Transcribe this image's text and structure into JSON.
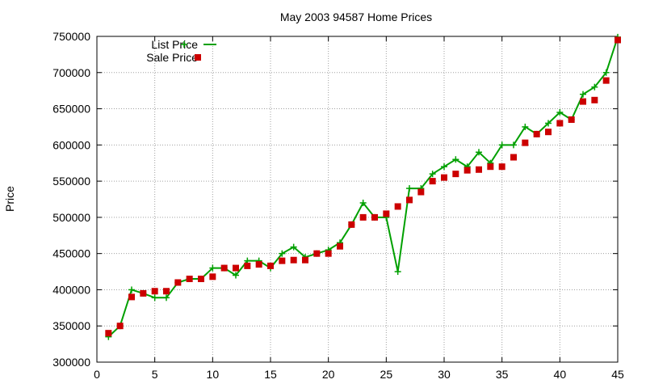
{
  "chart_data": {
    "type": "line",
    "title": "May 2003 94587 Home Prices",
    "xlabel": "",
    "ylabel": "Price",
    "xlim": [
      0,
      45
    ],
    "ylim": [
      300000,
      750000
    ],
    "xticks": [
      0,
      5,
      10,
      15,
      20,
      25,
      30,
      35,
      40,
      45
    ],
    "yticks": [
      300000,
      350000,
      400000,
      450000,
      500000,
      550000,
      600000,
      650000,
      700000,
      750000
    ],
    "grid": true,
    "legend_position": "top-left",
    "x": [
      1,
      2,
      3,
      4,
      5,
      6,
      7,
      8,
      9,
      10,
      11,
      12,
      13,
      14,
      15,
      16,
      17,
      18,
      19,
      20,
      21,
      22,
      23,
      24,
      25,
      26,
      27,
      28,
      29,
      30,
      31,
      32,
      33,
      34,
      35,
      36,
      37,
      38,
      39,
      40,
      41,
      42,
      43,
      44,
      45
    ],
    "series": [
      {
        "name": "List Price",
        "style": "line+cross",
        "color": "#00a000",
        "values": [
          335000,
          350000,
          400000,
          395000,
          389000,
          389000,
          410000,
          415000,
          415000,
          430000,
          430000,
          420000,
          440000,
          440000,
          430000,
          450000,
          459000,
          445000,
          450000,
          455000,
          465000,
          490000,
          520000,
          500000,
          500000,
          425000,
          540000,
          540000,
          560000,
          570000,
          580000,
          570000,
          590000,
          575000,
          600000,
          600000,
          625000,
          615000,
          630000,
          645000,
          635000,
          670000,
          680000,
          700000,
          749000
        ]
      },
      {
        "name": "Sale Price",
        "style": "square-markers",
        "color": "#cc0000",
        "values": [
          340000,
          350000,
          390000,
          395000,
          398000,
          398000,
          410000,
          415000,
          415000,
          418000,
          430000,
          430000,
          433000,
          435000,
          433000,
          440000,
          441000,
          441000,
          450000,
          450000,
          460000,
          490000,
          500000,
          500000,
          505000,
          515000,
          524000,
          535000,
          550000,
          555000,
          560000,
          565000,
          566000,
          570000,
          570000,
          583000,
          603000,
          615000,
          618000,
          630000,
          635000,
          660000,
          662000,
          689000,
          745000
        ]
      }
    ]
  }
}
